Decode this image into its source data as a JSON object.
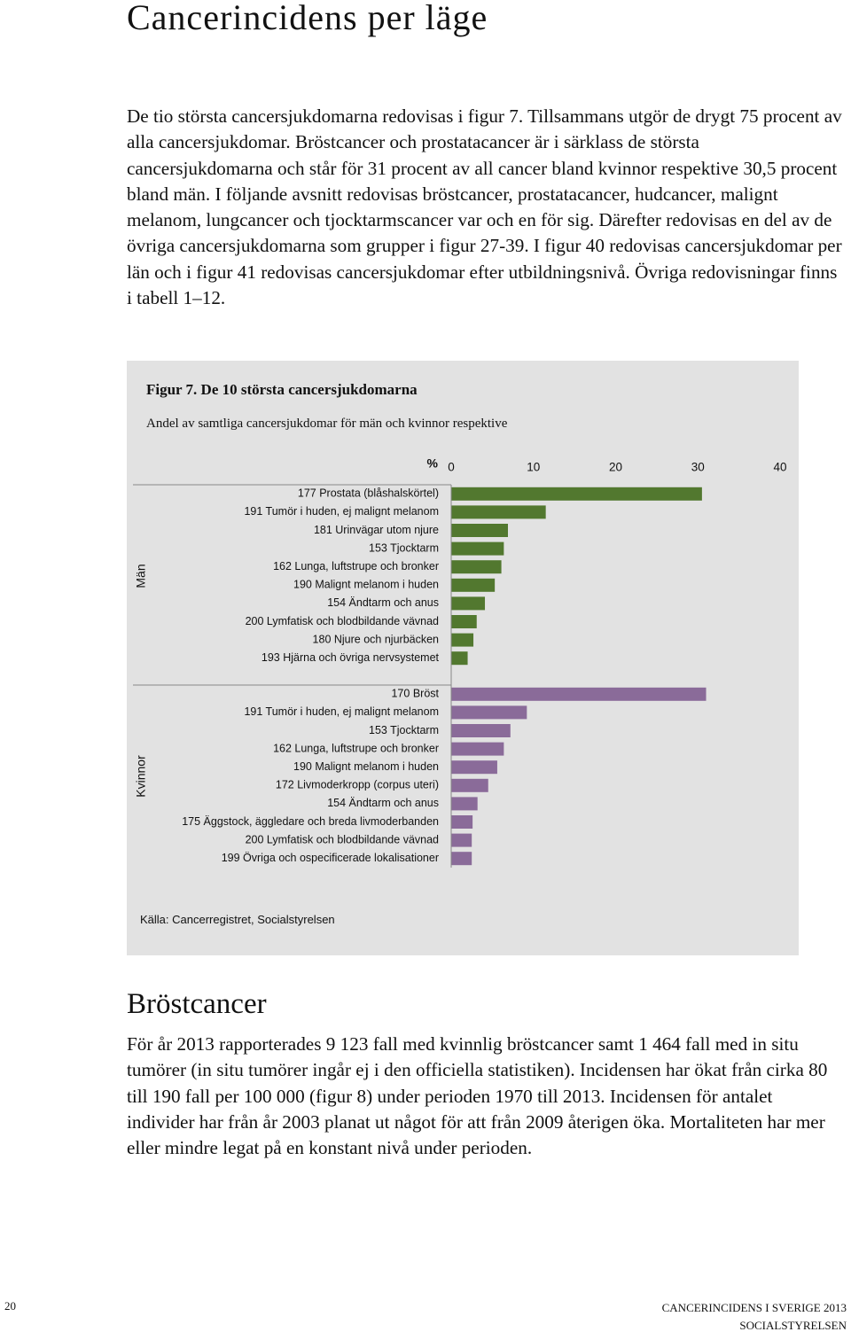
{
  "heading": "Cancerincidens per läge",
  "intro": "De tio största cancersjukdomarna redovisas i figur 7. Tillsammans utgör de drygt 75 procent av alla cancersjukdomar. Bröstcancer och prostatacancer är i särklass de största cancersjukdomarna och står för 31 procent av all cancer bland kvinnor respektive 30,5 procent bland män. I följande avsnitt redovisas bröstcancer, prostatacancer, hudcancer, malignt melanom, lungcancer och tjocktarmscancer var och en för sig. Därefter redovisas en del av de övriga cancersjukdomarna som grupper i figur 27-39. I figur 40 redovisas cancersjukdomar per län och i figur 41 redovisas cancersjukdomar efter utbildningsnivå. Övriga redovisningar finns i tabell 1–12.",
  "chart_data": {
    "type": "bar",
    "title": "Figur 7. De 10 största cancersjukdomarna",
    "subtitle": "Andel av samtliga cancersjukdomar för män och kvinnor respektive",
    "x_label": "%",
    "xlim": [
      0,
      40
    ],
    "xticks": [
      0,
      10,
      20,
      30,
      40
    ],
    "groups": [
      {
        "name": "Män",
        "color": "#52782f",
        "categories": [
          "177 Prostata (blåshalskörtel)",
          "191 Tumör i huden, ej malignt melanom",
          "181 Urinvägar utom njure",
          "153 Tjocktarm",
          "162 Lunga, luftstrupe och bronker",
          "190 Malignt melanom i huden",
          "154 Ändtarm och anus",
          "200 Lymfatisk och blodbildande vävnad",
          "180 Njure och njurbäcken",
          "193 Hjärna och övriga nervsystemet"
        ],
        "values": [
          30.5,
          11.5,
          6.9,
          6.4,
          6.1,
          5.3,
          4.1,
          3.1,
          2.7,
          2.0
        ]
      },
      {
        "name": "Kvinnor",
        "color": "#8a6b99",
        "categories": [
          "170 Bröst",
          "191 Tumör i huden, ej malignt melanom",
          "153 Tjocktarm",
          "162 Lunga, luftstrupe och bronker",
          "190 Malignt melanom i huden",
          "172 Livmoderkropp (corpus uteri)",
          "154 Ändtarm och anus",
          "175 Äggstock, äggledare och breda livmoderbanden",
          "200 Lymfatisk och blodbildande vävnad",
          "199 Övriga och ospecificerade lokalisationer"
        ],
        "values": [
          31,
          9.2,
          7.2,
          6.4,
          5.6,
          4.5,
          3.2,
          2.6,
          2.5,
          2.5
        ]
      }
    ],
    "source": "Källa: Cancerregistret, Socialstyrelsen"
  },
  "section": {
    "heading": "Bröstcancer",
    "text": "För år 2013 rapporterades 9 123 fall med kvinnlig bröstcancer samt 1 464 fall med in situ tumörer (in situ tumörer ingår ej i den officiella statistiken). Incidensen har ökat från cirka 80 till 190 fall per 100 000 (figur 8) under perioden 1970 till 2013. Incidensen för antalet individer har från år 2003 planat ut något för att från 2009 återigen öka. Mortaliteten har mer eller mindre legat på en konstant nivå under perioden."
  },
  "footer": {
    "page": "20",
    "publication": "CANCERINCIDENS I SVERIGE 2013",
    "publisher": "SOCIALSTYRELSEN"
  }
}
